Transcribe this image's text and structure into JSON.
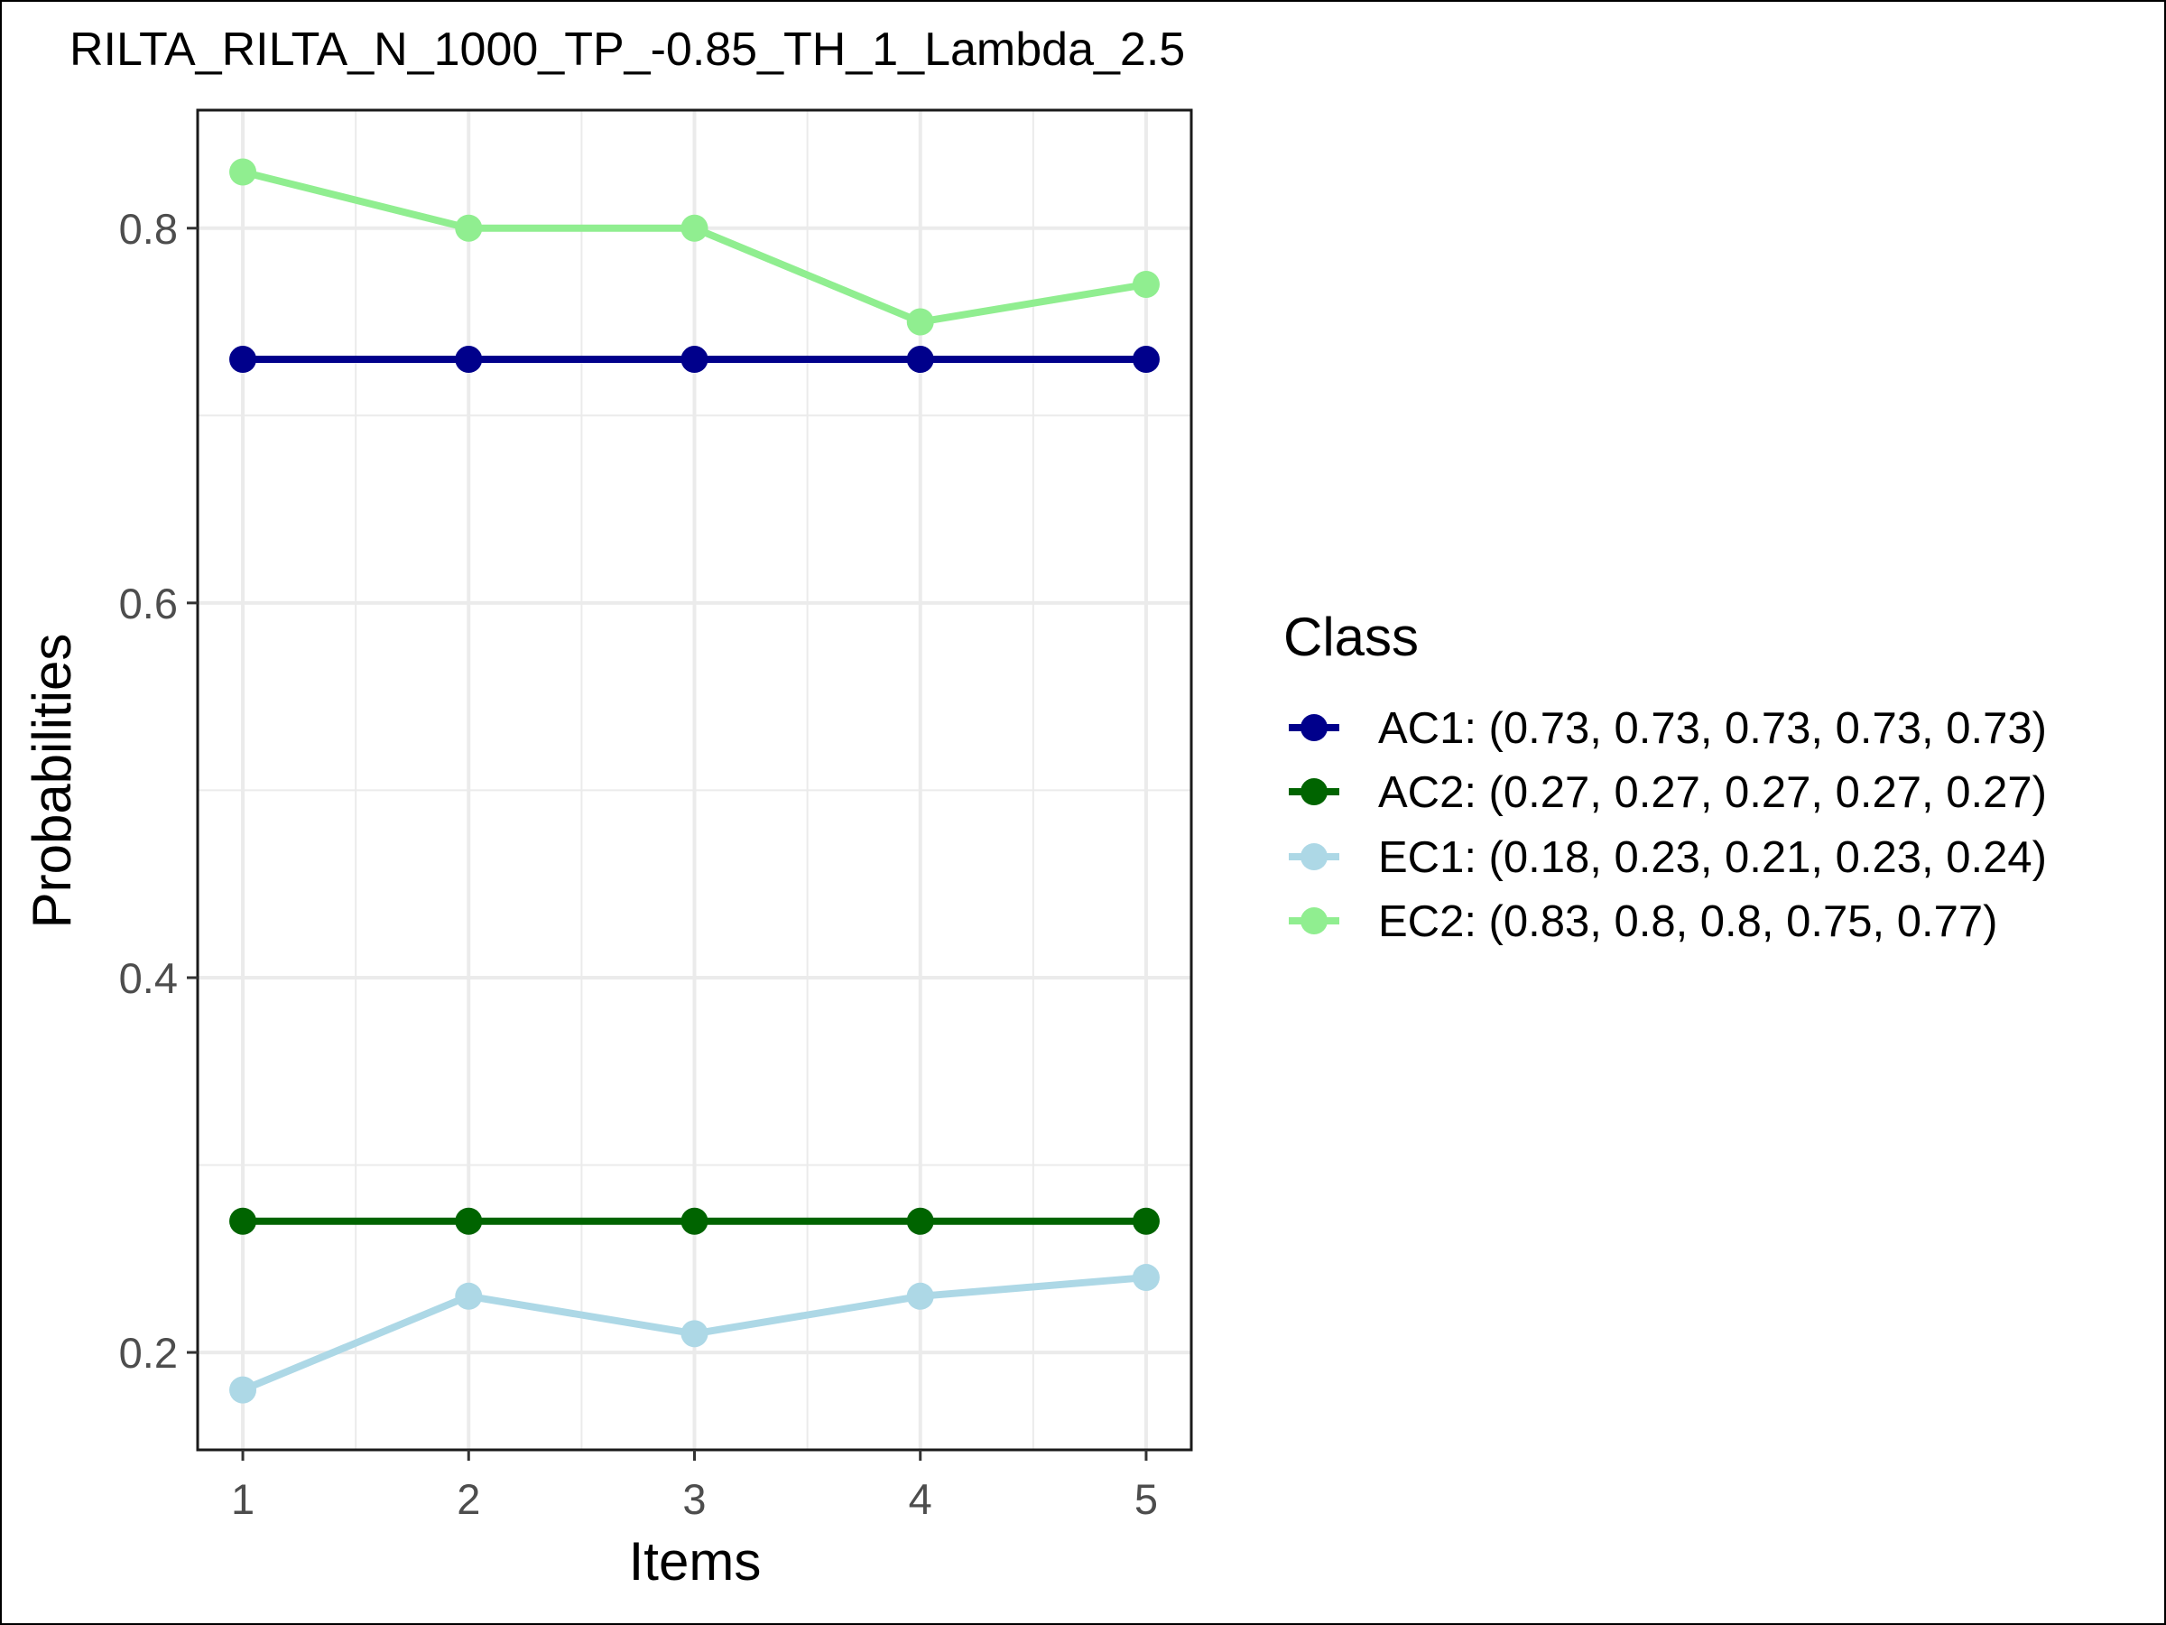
{
  "chart_data": {
    "type": "line",
    "title": "RILTA_RILTA_N_1000_TP_-0.85_TH_1_Lambda_2.5",
    "xlabel": "Items",
    "ylabel": "Probabilities",
    "x": [
      1,
      2,
      3,
      4,
      5
    ],
    "x_ticks": [
      "1",
      "2",
      "3",
      "4",
      "5"
    ],
    "y_ticks": [
      "0.2",
      "0.4",
      "0.6",
      "0.8"
    ],
    "xlim": [
      0.8,
      5.2
    ],
    "ylim": [
      0.148,
      0.863
    ],
    "grid": true,
    "legend": {
      "title": "Class",
      "placement": "right"
    },
    "series": [
      {
        "name": "AC1",
        "label": "AC1: (0.73, 0.73, 0.73, 0.73, 0.73)",
        "color": "#00008b",
        "values": [
          0.73,
          0.73,
          0.73,
          0.73,
          0.73
        ]
      },
      {
        "name": "AC2",
        "label": "AC2: (0.27, 0.27, 0.27, 0.27, 0.27)",
        "color": "#006400",
        "values": [
          0.27,
          0.27,
          0.27,
          0.27,
          0.27
        ]
      },
      {
        "name": "EC1",
        "label": "EC1: (0.18, 0.23, 0.21, 0.23, 0.24)",
        "color": "#add8e6",
        "values": [
          0.18,
          0.23,
          0.21,
          0.23,
          0.24
        ]
      },
      {
        "name": "EC2",
        "label": "EC2: (0.83, 0.8, 0.8, 0.75, 0.77)",
        "color": "#90ee90",
        "values": [
          0.83,
          0.8,
          0.8,
          0.75,
          0.77
        ]
      }
    ]
  }
}
